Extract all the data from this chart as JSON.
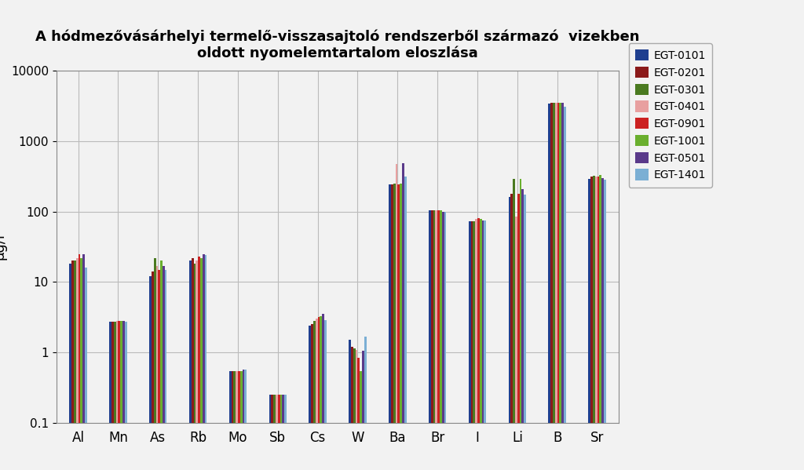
{
  "title": "A hódmezővásárhelyi termelő-visszasajtoló rendszerből származó  vizekben\noldott nyomelemtartalom eloszlása",
  "categories": [
    "Al",
    "Mn",
    "As",
    "Rb",
    "Mo",
    "Sb",
    "Cs",
    "W",
    "Ba",
    "Br",
    "I",
    "Li",
    "B",
    "Sr"
  ],
  "series": [
    {
      "label": "EGT-0101",
      "color": "#1F3F8F",
      "values": [
        18,
        2.7,
        12,
        20,
        0.55,
        0.25,
        2.4,
        1.5,
        240,
        103,
        72,
        160,
        3400,
        290
      ]
    },
    {
      "label": "EGT-0201",
      "color": "#8B1A1A",
      "values": [
        20,
        2.7,
        14,
        22,
        0.55,
        0.25,
        2.5,
        1.2,
        240,
        105,
        72,
        180,
        3500,
        310
      ]
    },
    {
      "label": "EGT-0301",
      "color": "#4A7A20",
      "values": [
        20,
        2.7,
        22,
        18,
        0.55,
        0.25,
        2.8,
        1.15,
        250,
        105,
        72,
        290,
        3500,
        320
      ]
    },
    {
      "label": "EGT-0401",
      "color": "#E8A0A0",
      "values": [
        22,
        2.8,
        17,
        20,
        0.55,
        0.25,
        3.0,
        1.1,
        470,
        105,
        78,
        85,
        3450,
        310
      ]
    },
    {
      "label": "EGT-0901",
      "color": "#CC2222",
      "values": [
        25,
        2.8,
        15,
        23,
        0.55,
        0.25,
        3.2,
        0.85,
        240,
        105,
        80,
        180,
        3500,
        310
      ]
    },
    {
      "label": "EGT-1001",
      "color": "#6AAF2E",
      "values": [
        22,
        2.8,
        20,
        22,
        0.55,
        0.25,
        3.3,
        0.55,
        250,
        103,
        78,
        290,
        3500,
        330
      ]
    },
    {
      "label": "EGT-0501",
      "color": "#5A3A8A",
      "values": [
        25,
        2.8,
        17,
        25,
        0.58,
        0.25,
        3.5,
        1.05,
        480,
        100,
        75,
        210,
        3450,
        300
      ]
    },
    {
      "label": "EGT-1401",
      "color": "#7BAFD4",
      "values": [
        16,
        2.7,
        15,
        24,
        0.58,
        0.25,
        2.9,
        1.7,
        310,
        100,
        75,
        175,
        3100,
        280
      ]
    }
  ],
  "ylim": [
    0.1,
    10000
  ],
  "figsize": [
    10.24,
    5.99
  ],
  "dpi": 100,
  "background_color": "#F2F2F2",
  "plot_bg_color": "#F2F2F2",
  "grid_color": "#BBBBBB",
  "legend_position": "right"
}
